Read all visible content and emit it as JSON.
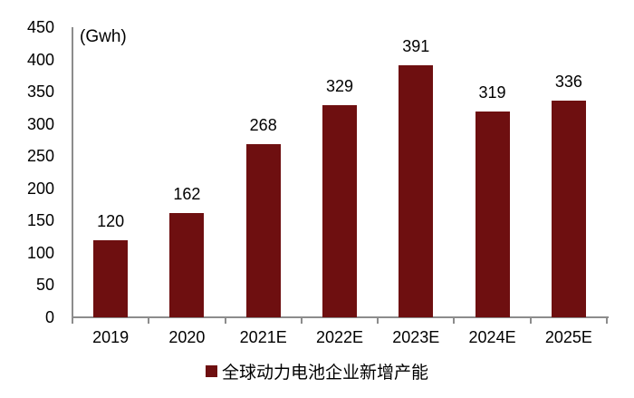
{
  "chart_data": {
    "type": "bar",
    "categories": [
      "2019",
      "2020",
      "2021E",
      "2022E",
      "2023E",
      "2024E",
      "2025E"
    ],
    "values": [
      120,
      162,
      268,
      329,
      391,
      319,
      336
    ],
    "series_name": "全球动力电池企业新增产能",
    "unit_label": "(Gwh)",
    "title": "",
    "xlabel": "",
    "ylabel": "",
    "ylim": [
      0,
      450
    ],
    "yticks": [
      0,
      50,
      100,
      150,
      200,
      250,
      300,
      350,
      400,
      450
    ],
    "grid": false,
    "legend_position": "bottom",
    "bar_color": "#6e0f10",
    "axis_color": "#8c8c8c",
    "text_color": "#000000"
  }
}
